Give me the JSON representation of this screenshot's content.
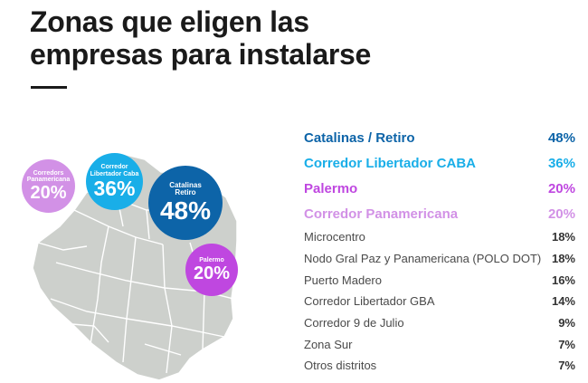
{
  "header": {
    "title_line1": "Zonas que eligen las",
    "title_line2": "empresas para instalarse"
  },
  "colors": {
    "catalinas": "#0d64a8",
    "corredor_caba": "#19aee8",
    "palermo": "#bf47e0",
    "panamericana": "#d291e6",
    "map_fill": "#cdd0cc"
  },
  "bubbles": {
    "panamericana": {
      "label_l1": "Corredors",
      "label_l2": "Panamericana",
      "pct": "20%"
    },
    "corredor_caba": {
      "label_l1": "Corredor",
      "label_l2": "Libertador Caba",
      "pct": "36%"
    },
    "catalinas": {
      "label_l1": "Catalinas",
      "label_l2": "Retiro",
      "pct": "48%"
    },
    "palermo": {
      "label_l1": "Palermo",
      "pct": "20%"
    }
  },
  "highlights": [
    {
      "label": "Catalinas / Retiro",
      "value": "48%",
      "color": "#0d64a8"
    },
    {
      "label": "Corredor Libertador CABA",
      "value": "36%",
      "color": "#19aee8"
    },
    {
      "label": "Palermo",
      "value": "20%",
      "color": "#bf47e0"
    },
    {
      "label": "Corredor Panamericana",
      "value": "20%",
      "color": "#d291e6"
    }
  ],
  "others": [
    {
      "label": "Microcentro",
      "value": "18%"
    },
    {
      "label": "Nodo Gral Paz y Panamericana (POLO DOT)",
      "value": "18%"
    },
    {
      "label": "Puerto Madero",
      "value": "16%"
    },
    {
      "label": "Corredor Libertador GBA",
      "value": "14%"
    },
    {
      "label": "Corredor 9 de Julio",
      "value": "9%"
    },
    {
      "label": "Zona Sur",
      "value": "7%"
    },
    {
      "label": "Otros distritos",
      "value": "7%"
    }
  ]
}
